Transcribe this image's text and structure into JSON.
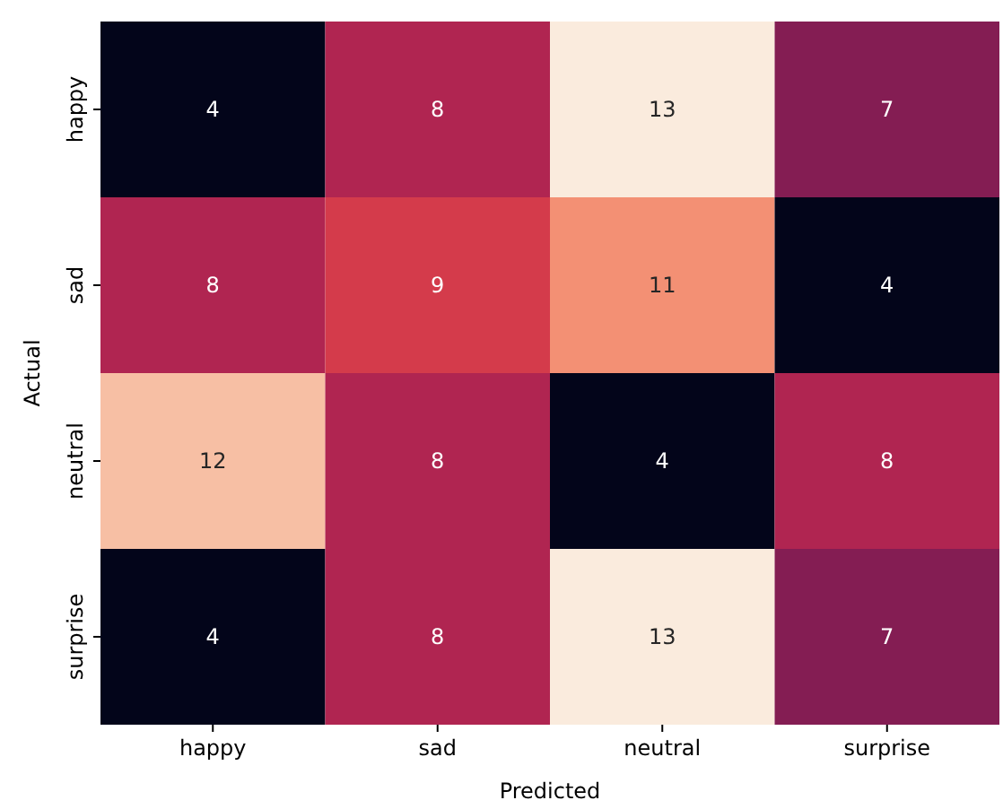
{
  "chart_data": {
    "type": "heatmap",
    "xlabel": "Predicted",
    "ylabel": "Actual",
    "categories": [
      "happy",
      "sad",
      "neutral",
      "surprise"
    ],
    "y_categories": [
      "happy",
      "sad",
      "neutral",
      "surprise"
    ],
    "cells": [
      [
        4,
        8,
        13,
        7
      ],
      [
        8,
        9,
        11,
        4
      ],
      [
        12,
        8,
        4,
        8
      ],
      [
        4,
        8,
        13,
        7
      ]
    ],
    "colors": [
      "#03051a",
      "#4c1d4b",
      "#a11a5b",
      "#e83f3f",
      "#f69c73",
      "#faebdd"
    ],
    "data_labels": true
  }
}
